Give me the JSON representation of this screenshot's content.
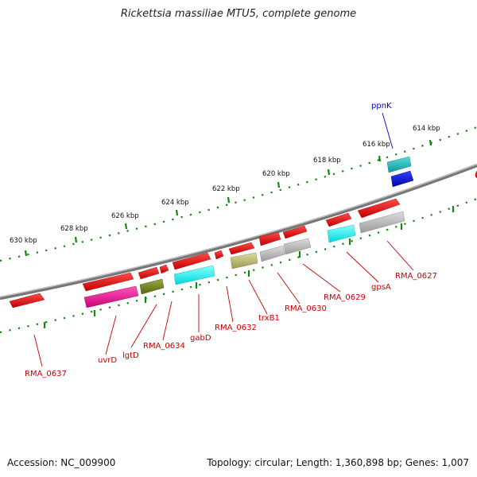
{
  "title": "Rickettsia massiliae MTU5, complete genome",
  "footer": {
    "accession": "Accession: NC_009900",
    "topology": "Topology: circular; Length: 1,360,898 bp; Genes: 1,007"
  },
  "scale": {
    "unit": "kbp",
    "ticks": [
      {
        "label": "614 kbp"
      },
      {
        "label": "616 kbp"
      },
      {
        "label": "618 kbp"
      },
      {
        "label": "620 kbp"
      },
      {
        "label": "622 kbp"
      },
      {
        "label": "624 kbp"
      },
      {
        "label": "626 kbp"
      },
      {
        "label": "628 kbp"
      },
      {
        "label": "630 kbp"
      }
    ]
  },
  "gene_labels": [
    {
      "name": "ppnK",
      "color": "#0000cc"
    },
    {
      "name": "RMA_0627",
      "color": "#cc0000"
    },
    {
      "name": "gpsA",
      "color": "#cc0000"
    },
    {
      "name": "RMA_0629",
      "color": "#cc0000"
    },
    {
      "name": "RMA_0630",
      "color": "#cc0000"
    },
    {
      "name": "trxB1",
      "color": "#cc0000"
    },
    {
      "name": "RMA_0632",
      "color": "#cc0000"
    },
    {
      "name": "gabD",
      "color": "#cc0000"
    },
    {
      "name": "RMA_0634",
      "color": "#cc0000"
    },
    {
      "name": "lgtD",
      "color": "#cc0000"
    },
    {
      "name": "uvrD",
      "color": "#cc0000"
    },
    {
      "name": "RMA_0637",
      "color": "#cc0000"
    }
  ],
  "colors": {
    "cds": "#ee1111",
    "backbone": "#808080",
    "tick": "#118811",
    "teal": "#22bbbb",
    "blue": "#1111dd",
    "cyan": "#00ffff",
    "gray": "#bbbbbb",
    "olive": "#bbbb77",
    "magenta": "#ee1199",
    "green": "#778822"
  }
}
